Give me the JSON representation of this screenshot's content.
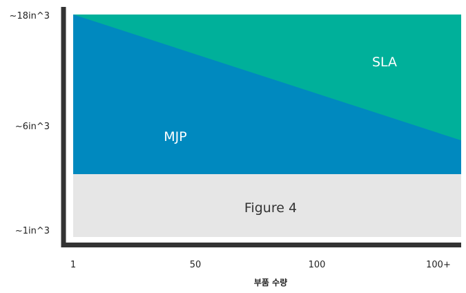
{
  "chart_data": {
    "type": "area",
    "title": "",
    "xlabel": "부품 수량",
    "ylabel": "",
    "x_ticks": [
      "1",
      "50",
      "100",
      "100+"
    ],
    "y_ticks": [
      "~18in^3",
      "~6in^3",
      "~1in^3"
    ],
    "regions": [
      {
        "name": "SLA",
        "color": "#00b09a"
      },
      {
        "name": "MJP",
        "color": "#0089bf"
      },
      {
        "name": "Figure 4",
        "color": "#e6e6e6",
        "text_color": "#333333"
      }
    ],
    "boundaries": {
      "mjp_sla_start": {
        "x": "1",
        "y": "~18in^3"
      },
      "mjp_sla_end": {
        "x": "100+",
        "y_fraction_between_6_and_1": 0.14
      }
    },
    "grid": false,
    "legend": "none",
    "axis_color": "#333333"
  }
}
